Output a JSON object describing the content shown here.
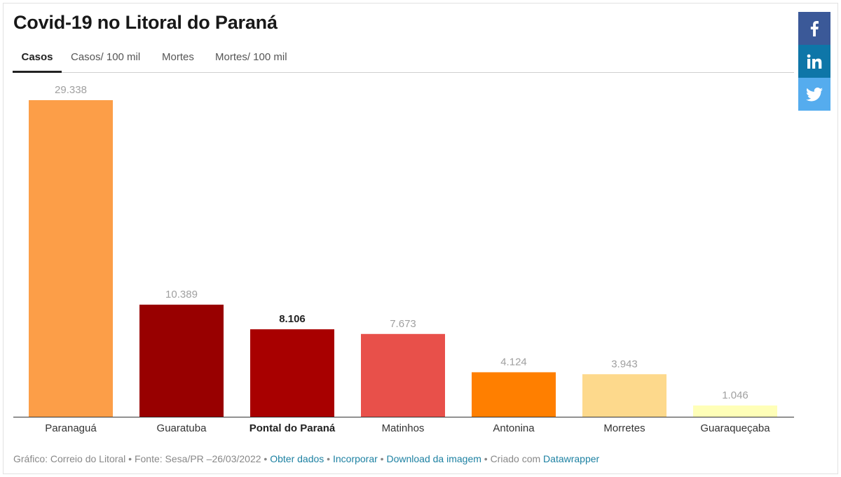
{
  "title": "Covid-19 no Litoral do Paraná",
  "tabs": [
    {
      "label": "Casos",
      "active": true
    },
    {
      "label": "Casos/ 100 mil",
      "active": false
    },
    {
      "label": "Mortes",
      "active": false
    },
    {
      "label": "Mortes/ 100 mil",
      "active": false
    }
  ],
  "social": [
    {
      "name": "facebook-share-button",
      "icon": "facebook-icon",
      "color": "#3b5998"
    },
    {
      "name": "linkedin-share-button",
      "icon": "linkedin-icon",
      "color": "#0e76a8"
    },
    {
      "name": "twitter-share-button",
      "icon": "twitter-icon",
      "color": "#55acee"
    }
  ],
  "chart_data": {
    "type": "bar",
    "title": "Covid-19 no Litoral do Paraná",
    "xlabel": "",
    "ylabel": "",
    "categories": [
      "Paranaguá",
      "Guaratuba",
      "Pontal do Paraná",
      "Matinhos",
      "Antonina",
      "Morretes",
      "Guaraqueçaba"
    ],
    "values": [
      29338,
      10389,
      8106,
      7673,
      4124,
      3943,
      1046
    ],
    "value_labels": [
      "29.338",
      "10.389",
      "8.106",
      "7.673",
      "4.124",
      "3.943",
      "1.046"
    ],
    "colors": [
      "#fc9e48",
      "#980000",
      "#a80000",
      "#e8504a",
      "#ff7f00",
      "#fdd98c",
      "#ffffb8"
    ],
    "highlighted": [
      false,
      false,
      true,
      false,
      false,
      false,
      false
    ],
    "ylim": [
      0,
      29338
    ],
    "grid": false,
    "legend": "none"
  },
  "footer": {
    "prefix": "Gráfico: Correio do Litoral • Fonte: Sesa/PR –26/03/2022 • ",
    "link_data": "Obter dados",
    "sep1": " • ",
    "link_embed": "Incorporar",
    "sep2": " • ",
    "link_download": "Download da imagem",
    "sep3": " • Criado com ",
    "link_datawrapper": "Datawrapper"
  }
}
